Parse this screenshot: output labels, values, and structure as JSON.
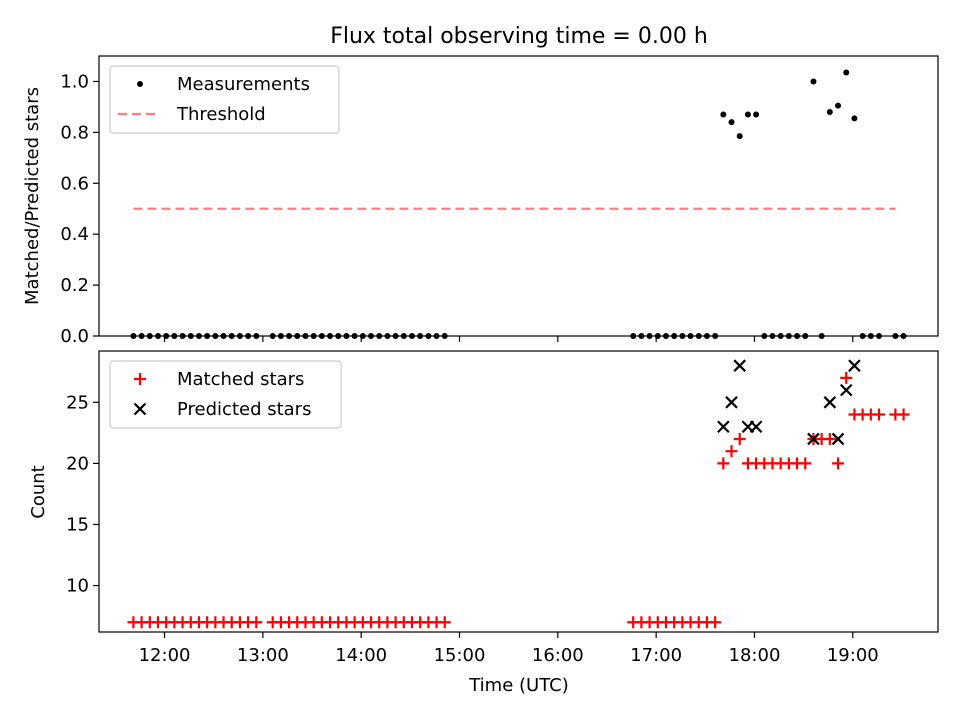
{
  "chart_data": [
    {
      "type": "scatter",
      "title": "Flux total observing time = 0.00 h",
      "xlabel": "",
      "ylabel": "Matched/Predicted stars",
      "xlim": [
        "11:20",
        "19:52"
      ],
      "ylim": [
        0.0,
        1.1
      ],
      "yticks": [
        "0.0",
        "0.2",
        "0.4",
        "0.6",
        "0.8",
        "1.0"
      ],
      "legend_position": "upper-left",
      "series": [
        {
          "name": "Measurements",
          "style": "dot",
          "color": "#000000",
          "points": [
            [
              "11:41",
              0
            ],
            [
              "11:46",
              0
            ],
            [
              "11:51",
              0
            ],
            [
              "11:56",
              0
            ],
            [
              "12:01",
              0
            ],
            [
              "12:06",
              0
            ],
            [
              "12:11",
              0
            ],
            [
              "12:16",
              0
            ],
            [
              "12:21",
              0
            ],
            [
              "12:26",
              0
            ],
            [
              "12:31",
              0
            ],
            [
              "12:36",
              0
            ],
            [
              "12:41",
              0
            ],
            [
              "12:46",
              0
            ],
            [
              "12:51",
              0
            ],
            [
              "12:56",
              0
            ],
            [
              "13:06",
              0
            ],
            [
              "13:11",
              0
            ],
            [
              "13:16",
              0
            ],
            [
              "13:21",
              0
            ],
            [
              "13:26",
              0
            ],
            [
              "13:31",
              0
            ],
            [
              "13:36",
              0
            ],
            [
              "13:41",
              0
            ],
            [
              "13:46",
              0
            ],
            [
              "13:51",
              0
            ],
            [
              "13:56",
              0
            ],
            [
              "14:01",
              0
            ],
            [
              "14:06",
              0
            ],
            [
              "14:11",
              0
            ],
            [
              "14:16",
              0
            ],
            [
              "14:21",
              0
            ],
            [
              "14:26",
              0
            ],
            [
              "14:31",
              0
            ],
            [
              "14:36",
              0
            ],
            [
              "14:41",
              0
            ],
            [
              "14:46",
              0
            ],
            [
              "14:51",
              0
            ],
            [
              "16:46",
              0
            ],
            [
              "16:51",
              0
            ],
            [
              "16:56",
              0
            ],
            [
              "17:01",
              0
            ],
            [
              "17:06",
              0
            ],
            [
              "17:11",
              0
            ],
            [
              "17:16",
              0
            ],
            [
              "17:21",
              0
            ],
            [
              "17:26",
              0
            ],
            [
              "17:31",
              0
            ],
            [
              "17:36",
              0
            ],
            [
              "17:41",
              0.87
            ],
            [
              "17:46",
              0.84
            ],
            [
              "17:51",
              0.785
            ],
            [
              "17:56",
              0.87
            ],
            [
              "18:01",
              0.87
            ],
            [
              "18:06",
              0
            ],
            [
              "18:11",
              0
            ],
            [
              "18:16",
              0
            ],
            [
              "18:21",
              0
            ],
            [
              "18:26",
              0
            ],
            [
              "18:31",
              0
            ],
            [
              "18:36",
              1.0
            ],
            [
              "18:41",
              0
            ],
            [
              "18:46",
              0.88
            ],
            [
              "18:51",
              0.905
            ],
            [
              "18:56",
              1.035
            ],
            [
              "19:01",
              0.855
            ],
            [
              "19:06",
              0
            ],
            [
              "19:11",
              0
            ],
            [
              "19:16",
              0
            ],
            [
              "19:26",
              0
            ],
            [
              "19:31",
              0
            ]
          ]
        },
        {
          "name": "Threshold",
          "style": "dashed-line",
          "color": "#ff7f7f",
          "points": [
            [
              "11:41",
              0.5
            ],
            [
              "19:26",
              0.5
            ]
          ]
        }
      ]
    },
    {
      "type": "scatter",
      "title": "",
      "xlabel": "Time (UTC)",
      "ylabel": "Count",
      "xlim": [
        "11:20",
        "19:52"
      ],
      "ylim": [
        6.2,
        29.2
      ],
      "yticks": [
        "10",
        "15",
        "20",
        "25"
      ],
      "xticks": [
        "12:00",
        "13:00",
        "14:00",
        "15:00",
        "16:00",
        "17:00",
        "18:00",
        "19:00"
      ],
      "legend_position": "upper-left",
      "series": [
        {
          "name": "Matched stars",
          "style": "plus",
          "color": "#ff0000",
          "points": [
            [
              "11:41",
              7
            ],
            [
              "11:46",
              7
            ],
            [
              "11:51",
              7
            ],
            [
              "11:56",
              7
            ],
            [
              "12:01",
              7
            ],
            [
              "12:06",
              7
            ],
            [
              "12:11",
              7
            ],
            [
              "12:16",
              7
            ],
            [
              "12:21",
              7
            ],
            [
              "12:26",
              7
            ],
            [
              "12:31",
              7
            ],
            [
              "12:36",
              7
            ],
            [
              "12:41",
              7
            ],
            [
              "12:46",
              7
            ],
            [
              "12:51",
              7
            ],
            [
              "12:56",
              7
            ],
            [
              "13:06",
              7
            ],
            [
              "13:11",
              7
            ],
            [
              "13:16",
              7
            ],
            [
              "13:21",
              7
            ],
            [
              "13:26",
              7
            ],
            [
              "13:31",
              7
            ],
            [
              "13:36",
              7
            ],
            [
              "13:41",
              7
            ],
            [
              "13:46",
              7
            ],
            [
              "13:51",
              7
            ],
            [
              "13:56",
              7
            ],
            [
              "14:01",
              7
            ],
            [
              "14:06",
              7
            ],
            [
              "14:11",
              7
            ],
            [
              "14:16",
              7
            ],
            [
              "14:21",
              7
            ],
            [
              "14:26",
              7
            ],
            [
              "14:31",
              7
            ],
            [
              "14:36",
              7
            ],
            [
              "14:41",
              7
            ],
            [
              "14:46",
              7
            ],
            [
              "14:51",
              7
            ],
            [
              "16:46",
              7
            ],
            [
              "16:51",
              7
            ],
            [
              "16:56",
              7
            ],
            [
              "17:01",
              7
            ],
            [
              "17:06",
              7
            ],
            [
              "17:11",
              7
            ],
            [
              "17:16",
              7
            ],
            [
              "17:21",
              7
            ],
            [
              "17:26",
              7
            ],
            [
              "17:31",
              7
            ],
            [
              "17:36",
              7
            ],
            [
              "17:41",
              20
            ],
            [
              "17:46",
              21
            ],
            [
              "17:51",
              22
            ],
            [
              "17:56",
              20
            ],
            [
              "18:01",
              20
            ],
            [
              "18:06",
              20
            ],
            [
              "18:11",
              20
            ],
            [
              "18:16",
              20
            ],
            [
              "18:21",
              20
            ],
            [
              "18:26",
              20
            ],
            [
              "18:31",
              20
            ],
            [
              "18:36",
              22
            ],
            [
              "18:41",
              22
            ],
            [
              "18:46",
              22
            ],
            [
              "18:51",
              20
            ],
            [
              "18:56",
              27
            ],
            [
              "19:01",
              24
            ],
            [
              "19:06",
              24
            ],
            [
              "19:11",
              24
            ],
            [
              "19:16",
              24
            ],
            [
              "19:26",
              24
            ],
            [
              "19:31",
              24
            ]
          ]
        },
        {
          "name": "Predicted stars",
          "style": "cross",
          "color": "#000000",
          "points": [
            [
              "17:41",
              23
            ],
            [
              "17:46",
              25
            ],
            [
              "17:51",
              28
            ],
            [
              "17:56",
              23
            ],
            [
              "18:01",
              23
            ],
            [
              "18:36",
              22
            ],
            [
              "18:46",
              25
            ],
            [
              "18:51",
              22
            ],
            [
              "18:56",
              26
            ],
            [
              "19:01",
              28
            ]
          ]
        }
      ]
    }
  ]
}
